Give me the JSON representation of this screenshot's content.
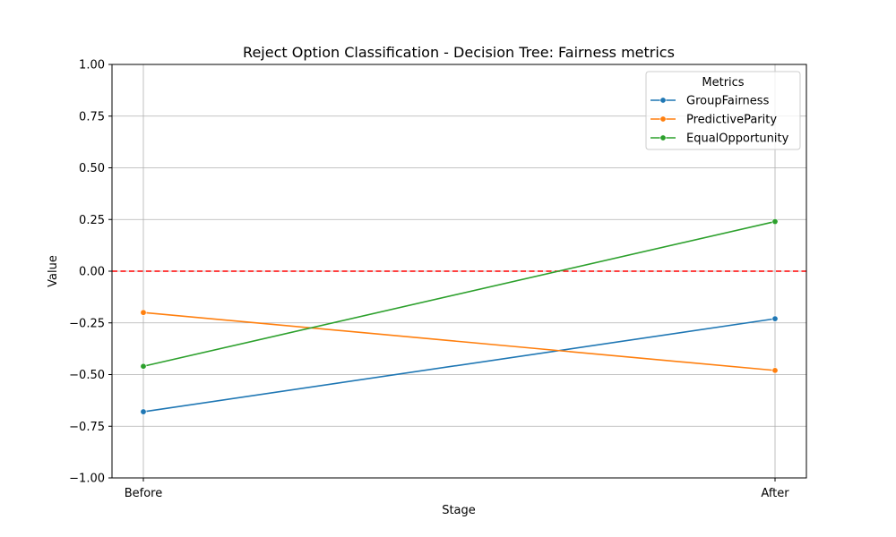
{
  "chart_data": {
    "type": "line",
    "title": "Reject Option Classification - Decision Tree: Fairness metrics",
    "xlabel": "Stage",
    "ylabel": "Value",
    "categories": [
      "Before",
      "After"
    ],
    "ylim": [
      -1.0,
      1.0
    ],
    "yticks": [
      "1.00",
      "0.75",
      "0.50",
      "0.25",
      "0.00",
      "−0.25",
      "−0.50",
      "−0.75",
      "−1.00"
    ],
    "ytick_values": [
      1.0,
      0.75,
      0.5,
      0.25,
      0.0,
      -0.25,
      -0.5,
      -0.75,
      -1.0
    ],
    "grid": true,
    "legend": {
      "title": "Metrics",
      "placement": "top-right"
    },
    "reference_line": {
      "y": 0.0,
      "color": "#ff0000",
      "style": "dashed"
    },
    "series": [
      {
        "name": "GroupFairness",
        "color": "#1f77b4",
        "values": [
          -0.68,
          -0.23
        ]
      },
      {
        "name": "PredictiveParity",
        "color": "#ff7f0e",
        "values": [
          -0.2,
          -0.48
        ]
      },
      {
        "name": "EqualOpportunity",
        "color": "#2ca02c",
        "values": [
          -0.46,
          0.24
        ]
      }
    ]
  }
}
